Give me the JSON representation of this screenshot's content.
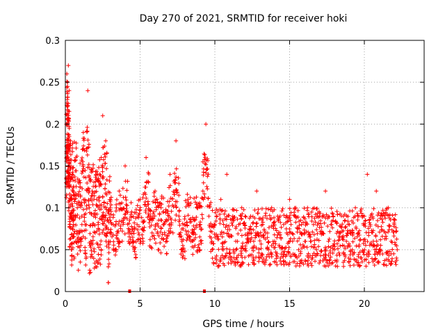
{
  "chart_data": {
    "type": "scatter",
    "title": "Day 270 of 2021, SRMTID for receiver hoki",
    "xlabel": "GPS time / hours",
    "ylabel": "SRMTID / TECUs",
    "xlim": [
      0,
      24
    ],
    "ylim": [
      0,
      0.3
    ],
    "xticks": [
      0,
      5,
      10,
      15,
      20
    ],
    "yticks": [
      0,
      0.05,
      0.1,
      0.15,
      0.2,
      0.25,
      0.3
    ],
    "xtick_labels": [
      "0",
      "5",
      "10",
      "15",
      "20"
    ],
    "ytick_labels": [
      "0",
      "0.05",
      "0.1",
      "0.15",
      "0.2",
      "0.25",
      "0.3"
    ],
    "grid": true,
    "marker": "plus",
    "series_color": "#ff0000",
    "zero_markers_x": [
      4.3,
      9.3
    ],
    "series": [
      {
        "name": "SRMTID",
        "x": [
          0.05,
          0.1,
          0.12,
          0.15,
          0.18,
          0.2,
          0.22,
          0.25,
          0.28,
          0.3,
          0.35,
          0.4,
          0.45,
          0.5,
          0.55,
          0.6,
          0.7,
          0.8,
          0.9,
          1.0,
          1.1,
          1.2,
          1.3,
          1.4,
          1.5,
          1.6,
          1.7,
          1.8,
          1.9,
          2.0,
          2.1,
          2.2,
          2.3,
          2.4,
          2.5,
          2.6,
          2.7,
          2.8,
          2.9,
          3.0,
          3.2,
          3.4,
          3.6,
          3.8,
          4.0,
          4.2,
          4.4,
          4.6,
          4.8,
          5.0,
          5.2,
          5.4,
          5.6,
          5.8,
          6.0,
          6.2,
          6.4,
          6.6,
          6.8,
          7.0,
          7.2,
          7.4,
          7.6,
          7.8,
          8.0,
          8.2,
          8.4,
          8.6,
          8.8,
          9.0,
          9.2,
          9.4,
          9.6,
          9.8,
          10.0,
          10.2,
          10.4,
          10.6,
          10.8,
          11.0,
          11.2,
          11.4,
          11.6,
          11.8,
          12.0,
          12.2,
          12.4,
          12.6,
          12.8,
          13.0,
          13.2,
          13.4,
          13.6,
          13.8,
          14.0,
          14.2,
          14.4,
          14.6,
          14.8,
          15.0,
          15.2,
          15.4,
          15.6,
          15.8,
          16.0,
          16.2,
          16.4,
          16.6,
          16.8,
          17.0,
          17.2,
          17.4,
          17.6,
          17.8,
          18.0,
          18.2,
          18.4,
          18.6,
          18.8,
          19.0,
          19.2,
          19.4,
          19.6,
          19.8,
          20.0,
          20.2,
          20.4,
          20.6,
          20.8,
          21.0,
          21.2,
          21.4,
          21.6,
          21.8,
          22.0,
          22.2
        ],
        "y": [
          0.13,
          0.26,
          0.2,
          0.25,
          0.17,
          0.27,
          0.1,
          0.24,
          0.15,
          0.09,
          0.18,
          0.05,
          0.14,
          0.12,
          0.08,
          0.11,
          0.16,
          0.1,
          0.07,
          0.13,
          0.09,
          0.19,
          0.11,
          0.08,
          0.24,
          0.1,
          0.06,
          0.12,
          0.09,
          0.07,
          0.11,
          0.08,
          0.14,
          0.05,
          0.21,
          0.09,
          0.18,
          0.07,
          0.06,
          0.1,
          0.08,
          0.05,
          0.12,
          0.06,
          0.15,
          0.07,
          0.09,
          0.05,
          0.08,
          0.11,
          0.06,
          0.16,
          0.09,
          0.07,
          0.12,
          0.05,
          0.1,
          0.08,
          0.06,
          0.14,
          0.07,
          0.18,
          0.09,
          0.05,
          0.08,
          0.11,
          0.06,
          0.07,
          0.1,
          0.05,
          0.12,
          0.2,
          0.09,
          0.06,
          0.08,
          0.03,
          0.11,
          0.07,
          0.14,
          0.05,
          0.09,
          0.06,
          0.08,
          0.1,
          0.05,
          0.07,
          0.09,
          0.06,
          0.12,
          0.04,
          0.08,
          0.07,
          0.05,
          0.1,
          0.06,
          0.09,
          0.04,
          0.08,
          0.07,
          0.11,
          0.06,
          0.09,
          0.05,
          0.08,
          0.07,
          0.1,
          0.06,
          0.08,
          0.05,
          0.09,
          0.07,
          0.12,
          0.06,
          0.08,
          0.05,
          0.03,
          0.07,
          0.09,
          0.06,
          0.08,
          0.05,
          0.1,
          0.07,
          0.04,
          0.09,
          0.14,
          0.08,
          0.06,
          0.12,
          0.05,
          0.09,
          0.07,
          0.1,
          0.06,
          0.08,
          0.05
        ]
      }
    ]
  }
}
